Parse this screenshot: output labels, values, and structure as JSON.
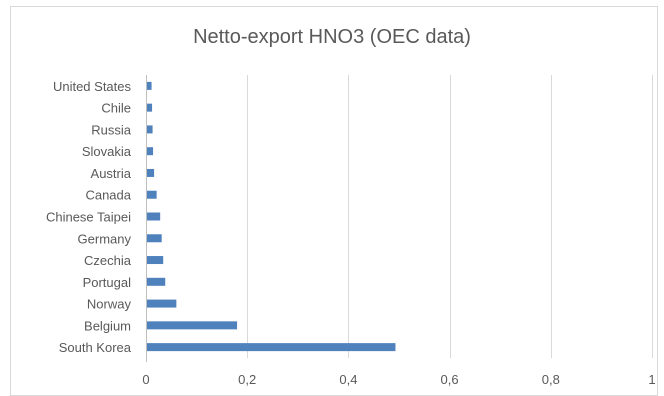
{
  "chart_data": {
    "type": "bar",
    "orientation": "horizontal",
    "title": "Netto-export HNO3 (OEC data)",
    "categories": [
      "South Korea",
      "Belgium",
      "Norway",
      "Portugal",
      "Czechia",
      "Germany",
      "Chinese Taipei",
      "Canada",
      "Austria",
      "Slovakia",
      "Russia",
      "Chile",
      "United States"
    ],
    "values": [
      0.493,
      0.18,
      0.06,
      0.038,
      0.034,
      0.031,
      0.028,
      0.021,
      0.016,
      0.014,
      0.013,
      0.012,
      0.011
    ],
    "xlabel": "",
    "ylabel": "",
    "xlim": [
      0,
      1
    ],
    "x_ticks": [
      0,
      0.2,
      0.4,
      0.6,
      0.8,
      1
    ],
    "x_tick_labels": [
      "0",
      "0,2",
      "0,4",
      "0,6",
      "0,8",
      "1"
    ],
    "grid": "vertical",
    "legend": "none",
    "bar_color": "#4f81bd"
  }
}
